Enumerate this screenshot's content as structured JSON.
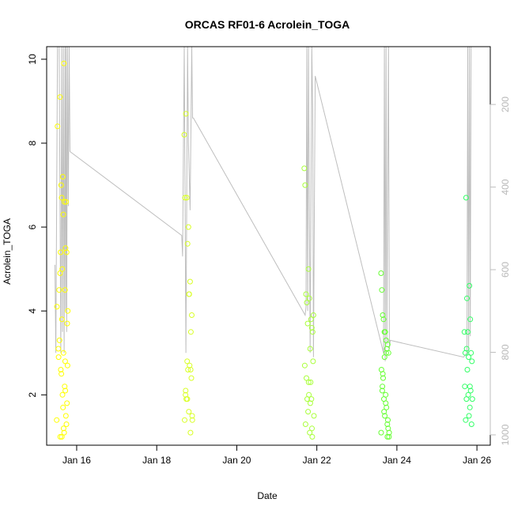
{
  "chart_data": {
    "type": "scatter",
    "title": "ORCAS RF01-6 Acrolein_TOGA",
    "xlabel": "Date",
    "ylabel": "Acrolein_TOGA",
    "x_axis": {
      "type": "date",
      "range": [
        "2016-01-15T06:00",
        "2016-01-26T08:00"
      ],
      "ticks": [
        {
          "value": "2016-01-16",
          "label": "Jan 16"
        },
        {
          "value": "2016-01-18",
          "label": "Jan 18"
        },
        {
          "value": "2016-01-20",
          "label": "Jan 20"
        },
        {
          "value": "2016-01-22",
          "label": "Jan 22"
        },
        {
          "value": "2016-01-24",
          "label": "Jan 24"
        },
        {
          "value": "2016-01-26",
          "label": "Jan 26"
        }
      ]
    },
    "y_axis": {
      "range": [
        0.8,
        10.3
      ],
      "ticks": [
        2,
        4,
        6,
        8,
        10
      ]
    },
    "y2_axis": {
      "range": [
        1025,
        60
      ],
      "reversed": true,
      "ticks": [
        200,
        400,
        600,
        800,
        1000
      ],
      "color": "#bebebe",
      "description": "pressure trace drawn as grey line"
    },
    "grid": false,
    "legend": "none",
    "colors": {
      "rf01": "#ffff00",
      "rf02": "#d9ff26",
      "rf03": "#aaff3c",
      "rf04": "#66ff33",
      "rf05": "#33ff66",
      "trace": "#bebebe"
    },
    "series": [
      {
        "color": "#ffff00",
        "x": [
          "2016-01-15T12:00",
          "2016-01-15T12:30",
          "2016-01-15T13:00",
          "2016-01-15T13:30",
          "2016-01-15T14:00",
          "2016-01-15T14:20",
          "2016-01-15T14:40",
          "2016-01-15T15:00",
          "2016-01-15T15:20",
          "2016-01-15T15:40",
          "2016-01-15T16:00",
          "2016-01-15T16:20",
          "2016-01-15T16:40",
          "2016-01-15T17:00",
          "2016-01-15T17:20",
          "2016-01-15T17:40",
          "2016-01-15T18:00",
          "2016-01-15T18:20",
          "2016-01-15T18:40",
          "2016-01-15T12:10",
          "2016-01-15T13:10",
          "2016-01-15T14:10",
          "2016-01-15T15:10",
          "2016-01-15T16:10",
          "2016-01-15T17:10",
          "2016-01-15T18:10",
          "2016-01-15T14:30",
          "2016-01-15T15:30",
          "2016-01-15T16:30",
          "2016-01-15T17:30",
          "2016-01-15T13:40",
          "2016-01-15T15:50",
          "2016-01-15T16:50",
          "2016-01-15T17:50",
          "2016-01-15T14:50",
          "2016-01-15T16:05",
          "2016-01-15T15:05",
          "2016-01-15T17:05",
          "2016-01-15T18:30",
          "2016-01-15T14:05"
        ],
        "y": [
          1.4,
          8.4,
          3.1,
          4.5,
          9.1,
          5.4,
          7.0,
          6.7,
          5.0,
          7.2,
          6.3,
          9.9,
          6.6,
          4.5,
          5.5,
          6.6,
          5.4,
          3.7,
          4.0,
          4.1,
          2.9,
          1.0,
          3.8,
          1.2,
          2.1,
          1.8,
          2.6,
          2.0,
          1.1,
          1.5,
          3.3,
          1.7,
          2.2,
          1.3,
          2.5,
          3.0,
          1.0,
          2.8,
          2.7,
          4.9
        ]
      },
      {
        "color": "#d9ff26",
        "x": [
          "2016-01-18T16:30",
          "2016-01-18T17:00",
          "2016-01-18T17:30",
          "2016-01-18T18:00",
          "2016-01-18T18:30",
          "2016-01-18T19:00",
          "2016-01-18T19:30",
          "2016-01-18T20:00",
          "2016-01-18T20:30",
          "2016-01-18T21:00",
          "2016-01-18T16:45",
          "2016-01-18T17:15",
          "2016-01-18T17:45",
          "2016-01-18T18:15",
          "2016-01-18T18:45",
          "2016-01-18T19:15",
          "2016-01-18T19:45",
          "2016-01-18T20:15",
          "2016-01-18T20:45",
          "2016-01-18T21:15",
          "2016-01-18T17:20",
          "2016-01-18T18:20",
          "2016-01-18T19:20",
          "2016-01-18T20:20",
          "2016-01-18T21:20"
        ],
        "y": [
          8.2,
          6.7,
          8.7,
          6.7,
          5.6,
          6.0,
          4.4,
          4.7,
          3.5,
          3.9,
          1.4,
          2.0,
          1.9,
          2.8,
          2.6,
          1.6,
          2.7,
          1.1,
          2.4,
          1.5,
          2.1,
          1.9,
          4.4,
          2.6,
          1.4
        ]
      },
      {
        "color": "#aaff3c",
        "x": [
          "2016-01-21T16:30",
          "2016-01-21T17:00",
          "2016-01-21T17:30",
          "2016-01-21T18:00",
          "2016-01-21T18:30",
          "2016-01-21T19:00",
          "2016-01-21T19:30",
          "2016-01-21T20:00",
          "2016-01-21T20:30",
          "2016-01-21T21:00",
          "2016-01-21T21:30",
          "2016-01-21T22:00",
          "2016-01-21T16:45",
          "2016-01-21T17:15",
          "2016-01-21T17:45",
          "2016-01-21T18:15",
          "2016-01-21T18:45",
          "2016-01-21T19:15",
          "2016-01-21T19:45",
          "2016-01-21T20:15",
          "2016-01-21T20:45",
          "2016-01-21T21:15",
          "2016-01-21T21:45",
          "2016-01-21T22:15",
          "2016-01-21T19:05",
          "2016-01-21T20:05",
          "2016-01-21T21:05"
        ],
        "y": [
          7.4,
          7.0,
          4.4,
          4.2,
          3.7,
          5.0,
          4.3,
          3.1,
          3.8,
          3.6,
          3.5,
          3.9,
          2.7,
          1.3,
          2.4,
          1.9,
          1.6,
          2.0,
          1.1,
          2.3,
          1.9,
          1.0,
          2.8,
          1.5,
          2.3,
          1.8,
          1.2
        ]
      },
      {
        "color": "#66ff33",
        "x": [
          "2016-01-23T14:30",
          "2016-01-23T15:00",
          "2016-01-23T15:30",
          "2016-01-23T16:00",
          "2016-01-23T16:30",
          "2016-01-23T17:00",
          "2016-01-23T17:30",
          "2016-01-23T18:00",
          "2016-01-23T18:30",
          "2016-01-23T19:00",
          "2016-01-23T14:45",
          "2016-01-23T15:15",
          "2016-01-23T15:45",
          "2016-01-23T16:15",
          "2016-01-23T16:45",
          "2016-01-23T17:15",
          "2016-01-23T17:45",
          "2016-01-23T18:15",
          "2016-01-23T18:45",
          "2016-01-23T19:15",
          "2016-01-23T15:20",
          "2016-01-23T16:20",
          "2016-01-23T17:20",
          "2016-01-23T18:20",
          "2016-01-23T19:20",
          "2016-01-23T14:35",
          "2016-01-23T16:35",
          "2016-01-23T17:35",
          "2016-01-23T18:35",
          "2016-01-23T15:35"
        ],
        "y": [
          4.9,
          4.5,
          3.9,
          3.8,
          3.5,
          3.5,
          3.3,
          3.1,
          3.2,
          3.0,
          2.6,
          2.1,
          2.4,
          1.9,
          1.5,
          2.0,
          1.7,
          1.3,
          1.2,
          1.0,
          2.2,
          1.6,
          1.8,
          1.0,
          1.1,
          1.1,
          2.9,
          3.0,
          1.4,
          2.5
        ]
      },
      {
        "color": "#33ff66",
        "x": [
          "2016-01-25T16:30",
          "2016-01-25T17:00",
          "2016-01-25T17:30",
          "2016-01-25T18:00",
          "2016-01-25T18:30",
          "2016-01-25T19:00",
          "2016-01-25T19:30",
          "2016-01-25T20:00",
          "2016-01-25T20:30",
          "2016-01-25T21:00",
          "2016-01-25T16:45",
          "2016-01-25T17:15",
          "2016-01-25T17:45",
          "2016-01-25T18:15",
          "2016-01-25T18:45",
          "2016-01-25T19:15",
          "2016-01-25T19:45",
          "2016-01-25T20:15",
          "2016-01-25T20:45",
          "2016-01-25T21:15",
          "2016-01-25T17:50",
          "2016-01-25T19:50"
        ],
        "y": [
          3.5,
          3.0,
          6.7,
          4.3,
          3.5,
          2.9,
          4.6,
          3.8,
          3.0,
          2.8,
          2.2,
          1.4,
          1.9,
          2.6,
          2.0,
          1.5,
          1.7,
          2.1,
          1.3,
          1.9,
          3.1,
          2.2
        ]
      }
    ],
    "trace": {
      "color": "#bebebe",
      "x": [
        "2016-01-15T11:00",
        "2016-01-15T11:30",
        "2016-01-15T12:30",
        "2016-01-15T13:30",
        "2016-01-15T14:30",
        "2016-01-15T15:00",
        "2016-01-15T15:30",
        "2016-01-15T16:00",
        "2016-01-15T16:30",
        "2016-01-15T17:00",
        "2016-01-15T17:20",
        "2016-01-15T17:40",
        "2016-01-15T18:00",
        "2016-01-15T18:30",
        "2016-01-15T19:00",
        "2016-01-15T19:30",
        "2016-01-15T20:00",
        "2016-01-18T15:00",
        "2016-01-18T15:30",
        "2016-01-18T16:30",
        "2016-01-18T17:30",
        "2016-01-18T18:30",
        "2016-01-18T19:00",
        "2016-01-18T20:00",
        "2016-01-18T21:00",
        "2016-01-18T21:30",
        "2016-01-18T22:00",
        "2016-01-21T17:00",
        "2016-01-21T17:30",
        "2016-01-21T18:00",
        "2016-01-21T18:30",
        "2016-01-21T19:00",
        "2016-01-21T20:00",
        "2016-01-21T21:00",
        "2016-01-21T21:30",
        "2016-01-21T22:00",
        "2016-01-21T23:00",
        "2016-01-23T16:00",
        "2016-01-23T16:30",
        "2016-01-23T17:00",
        "2016-01-23T17:30",
        "2016-01-23T18:00",
        "2016-01-23T19:00",
        "2016-01-23T19:30",
        "2016-01-23T20:00",
        "2016-01-25T16:00",
        "2016-01-25T18:00",
        "2016-01-25T18:30",
        "2016-01-25T19:00",
        "2016-01-25T19:30",
        "2016-01-25T20:00",
        "2016-01-25T20:30"
      ],
      "y": [
        5.1,
        3.0,
        10.3,
        10.3,
        3.0,
        10.3,
        3.5,
        10.3,
        3.0,
        10.3,
        4.0,
        10.3,
        3.5,
        10.3,
        6.5,
        10.3,
        7.8,
        5.8,
        5.3,
        10.3,
        3.0,
        10.3,
        8.0,
        6.4,
        10.3,
        8.6,
        8.6,
        3.9,
        4.1,
        10.3,
        4.0,
        10.3,
        3.0,
        10.3,
        8.8,
        2.9,
        9.6,
        3.0,
        10.3,
        2.8,
        10.3,
        3.2,
        10.3,
        3.1,
        3.3,
        2.9,
        3.0,
        10.3,
        3.0,
        10.3,
        3.4,
        10.3
      ]
    }
  }
}
